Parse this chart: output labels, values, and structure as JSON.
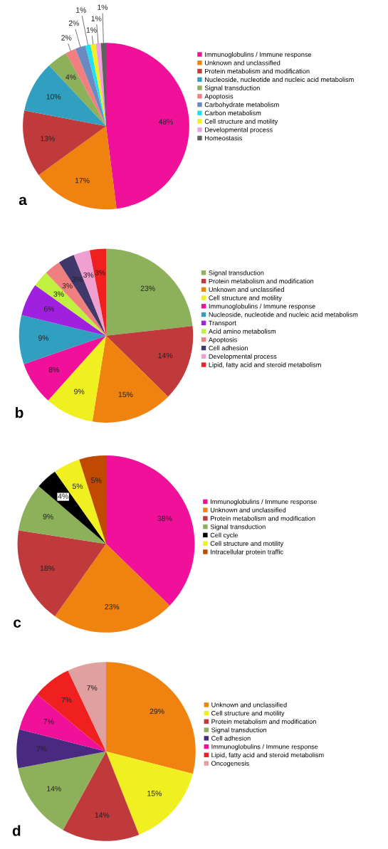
{
  "chart_data": [
    {
      "type": "pie",
      "annotations": [
        "a"
      ],
      "legend": "right",
      "categories": [
        "Immunoglobulins / Immune response",
        "Unknown and unclassified",
        "Protein metabolism and modification",
        "Nucleoside, nucleotide and nucleic acid metabolism",
        "Signal transduction",
        "Apoptosis",
        "Carbohydrate metabolism",
        "Carbon metabolism",
        "Cell structure and motility",
        "Developmental process",
        "Homeostasis"
      ],
      "values": [
        48,
        17,
        13,
        10,
        4,
        2,
        2,
        1,
        1,
        1,
        1
      ],
      "value_labels": [
        "48%",
        "17%",
        "13%",
        "10%",
        "4%",
        "2%",
        "2%",
        "1%",
        "1%",
        "1%",
        "1%"
      ],
      "colors": [
        "#f0109a",
        "#f0820f",
        "#c0393b",
        "#31a0c0",
        "#8db05a",
        "#f08080",
        "#6a8ac0",
        "#20e0f0",
        "#f0f020",
        "#f0a0e0",
        "#606060"
      ]
    },
    {
      "type": "pie",
      "annotations": [
        "b"
      ],
      "legend": "right",
      "categories": [
        "Signal transduction",
        "Protein metabolism and modification",
        "Unknown and unclassified",
        "Cell structure and motility",
        "Immunoglobulins / Immune response",
        "Nucleoside, nucleotide and nucleic acid metabolism",
        "Transport",
        "Acid amino metabolism",
        "Apoptosis",
        "Cell adhesion",
        "Developmental process",
        "Lipid, fatty acid and steroid metabolism"
      ],
      "values": [
        23,
        14,
        15,
        9,
        8,
        9,
        6,
        3,
        3,
        3,
        3,
        3
      ],
      "value_labels": [
        "23%",
        "14%",
        "15%",
        "9%",
        "8%",
        "9%",
        "6%",
        "3%",
        "3%",
        "3%",
        "3%",
        "3%"
      ],
      "colors": [
        "#8db05a",
        "#c0393b",
        "#f0820f",
        "#f0f020",
        "#f0109a",
        "#31a0c0",
        "#a020e0",
        "#c0f040",
        "#f08080",
        "#40386a",
        "#f0a0d0",
        "#f02020"
      ]
    },
    {
      "type": "pie",
      "annotations": [
        "c"
      ],
      "legend": "right",
      "categories": [
        "Immunoglobulins / Immune response",
        "Unknown and unclassified",
        "Protein metabolism and modification",
        "Signal transduction",
        "Cell cycle",
        "Cell structure and motility",
        "Intracellular protein traffic"
      ],
      "values": [
        38,
        23,
        18,
        9,
        4,
        5,
        5
      ],
      "value_labels": [
        "38%",
        "23%",
        "18%",
        "9%",
        "4%",
        "5%",
        "5%"
      ],
      "colors": [
        "#f0109a",
        "#f0820f",
        "#c0393b",
        "#8db05a",
        "#000000",
        "#f0f020",
        "#c04a00"
      ]
    },
    {
      "type": "pie",
      "annotations": [
        "d"
      ],
      "legend": "right",
      "categories": [
        "Unknown and unclassified",
        "Cell structure and motility",
        "Protein metabolism and modification",
        "Signal transduction",
        "Cell adhesion",
        "Immunoglobulins / Immune response",
        "Lipid, fatty acid and steroid metabolism",
        "Oncogenesis"
      ],
      "values": [
        29,
        15,
        14,
        14,
        7,
        7,
        7,
        7
      ],
      "value_labels": [
        "29%",
        "15%",
        "14%",
        "14%",
        "7%",
        "7%",
        "7%",
        "7%"
      ],
      "colors": [
        "#f0820f",
        "#f0f020",
        "#c0393b",
        "#8db05a",
        "#4a2a80",
        "#f0109a",
        "#f02020",
        "#e0a0a0"
      ]
    }
  ]
}
